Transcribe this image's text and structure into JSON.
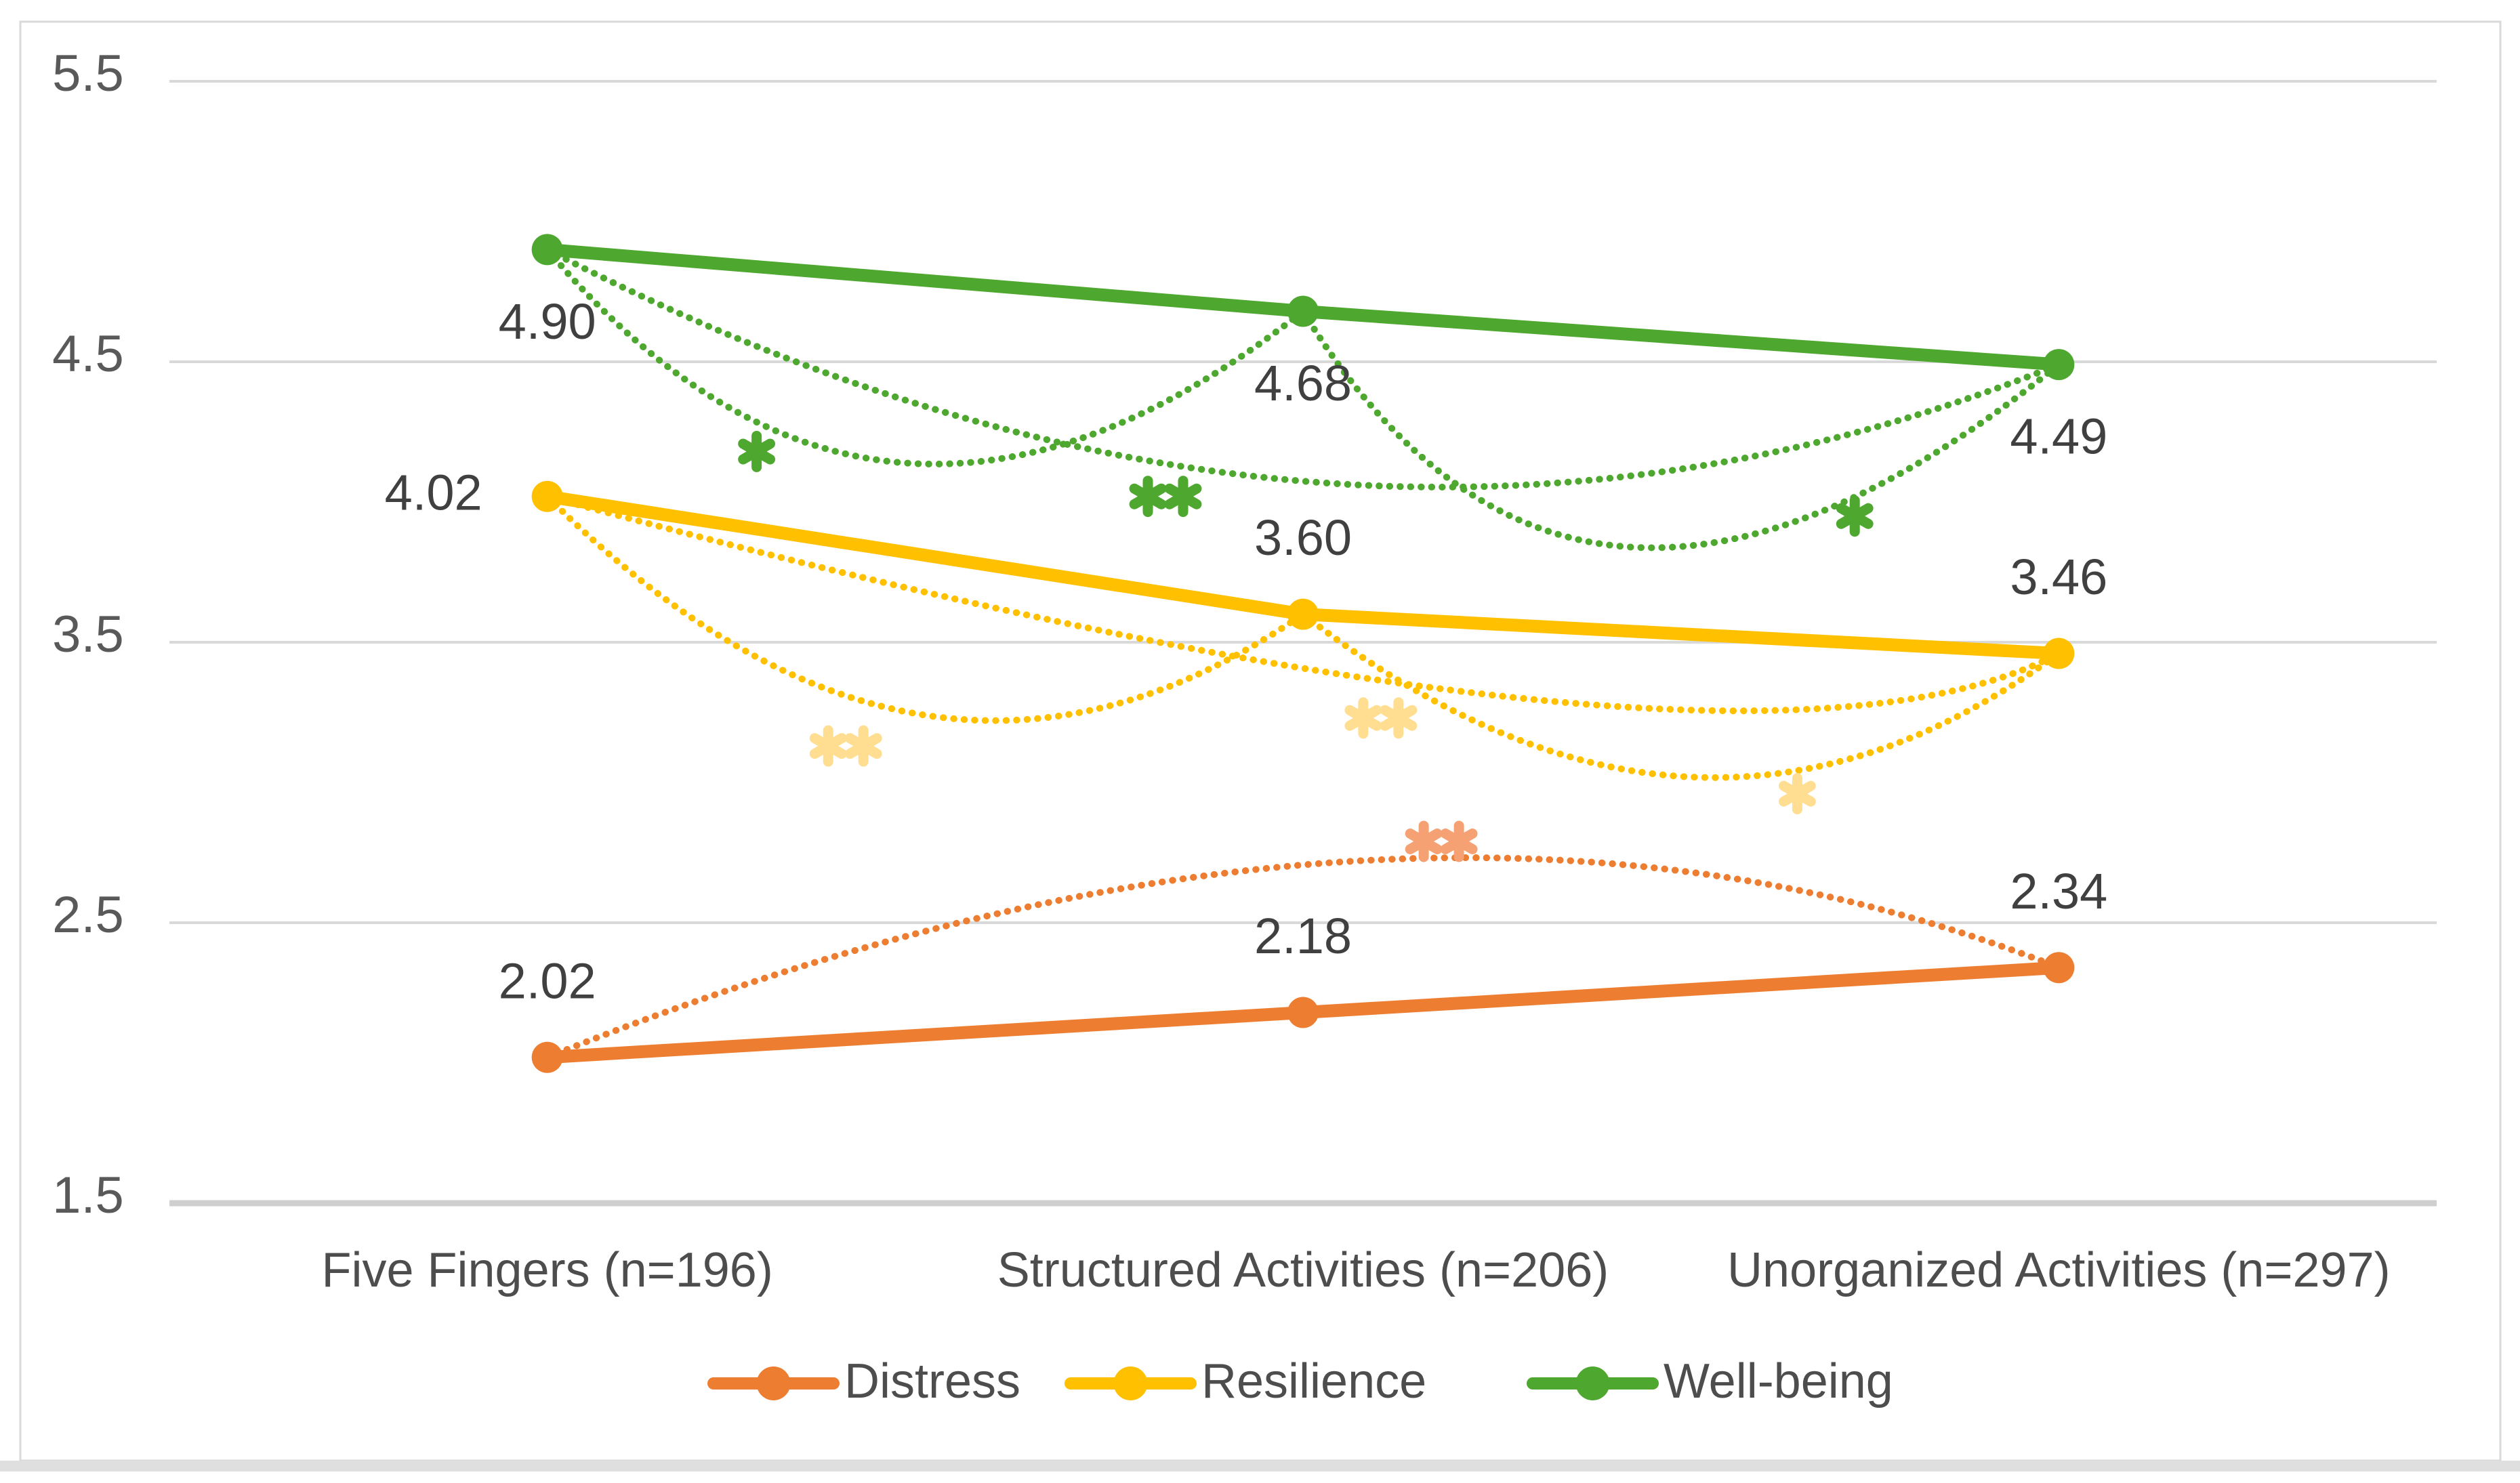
{
  "chart_data": {
    "type": "line",
    "title": "",
    "categories": [
      "Five Fingers (n=196)",
      "Structured Activities (n=206)",
      "Unorganized Activities (n=297)"
    ],
    "series": [
      {
        "name": "Distress",
        "color": "#ED7D31",
        "values": [
          2.02,
          2.18,
          2.34
        ],
        "labels": [
          "2.02",
          "2.18",
          "2.34"
        ],
        "label_placement": [
          "above",
          "above",
          "above"
        ]
      },
      {
        "name": "Resilience",
        "color": "#FFC000",
        "values": [
          4.02,
          3.6,
          3.46
        ],
        "labels": [
          "4.02",
          "3.60",
          "3.46"
        ],
        "label_placement": [
          "left",
          "above",
          "above"
        ]
      },
      {
        "name": "Well-being",
        "color": "#4EA72E",
        "values": [
          4.9,
          4.68,
          4.49
        ],
        "labels": [
          "4.90",
          "4.68",
          "4.49"
        ],
        "label_placement": [
          "below",
          "below",
          "below"
        ]
      }
    ],
    "y_axis": {
      "min": 1.5,
      "max": 5.5,
      "step": 1.0,
      "ticks": [
        "5.5",
        "4.5",
        "3.5",
        "2.5",
        "1.5"
      ],
      "grid": true
    },
    "x_axis": {
      "labels_visible": true
    },
    "legend": {
      "position": "bottom",
      "entries": [
        "Distress",
        "Resilience",
        "Well-being"
      ]
    },
    "comparisons": [
      {
        "series": "Well-being",
        "from": 0,
        "to": 1,
        "sig": "*",
        "arc_color": "#4EA72E",
        "star_color": "#4EA72E",
        "star_x": 0.277,
        "star_v": 4.18,
        "apex_x": 0.47,
        "apex_v": 4.14
      },
      {
        "series": "Well-being",
        "from": 0,
        "to": 2,
        "sig": "**",
        "arc_color": "#4EA72E",
        "star_color": "#4EA72E",
        "star_x": 0.818,
        "star_v": 4.02,
        "apex_x": 1.02,
        "apex_v": 4.07
      },
      {
        "series": "Well-being",
        "from": 1,
        "to": 2,
        "sig": "*",
        "arc_color": "#4EA72E",
        "star_color": "#4EA72E",
        "star_x": 1.73,
        "star_v": 3.95,
        "apex_x": 1.43,
        "apex_v": 3.84
      },
      {
        "series": "Resilience",
        "from": 0,
        "to": 1,
        "sig": "**",
        "arc_color": "#FFC000",
        "star_color": "#FFDE91",
        "star_x": 0.395,
        "star_v": 3.13,
        "apex_x": 0.5,
        "apex_v": 3.24
      },
      {
        "series": "Resilience",
        "from": 0,
        "to": 2,
        "sig": "**",
        "arc_color": "#FFC000",
        "star_color": "#FFDE91",
        "star_x": 1.103,
        "star_v": 3.23,
        "apex_x": 1.29,
        "apex_v": 3.3
      },
      {
        "series": "Resilience",
        "from": 1,
        "to": 2,
        "sig": "*",
        "arc_color": "#FFC000",
        "star_color": "#FFDE91",
        "star_x": 1.654,
        "star_v": 2.96,
        "apex_x": 1.51,
        "apex_v": 3.02
      },
      {
        "series": "Distress",
        "from": 0,
        "to": 2,
        "sig": "**",
        "arc_color": "#ED7D31",
        "star_color": "#F5A173",
        "star_x": 1.183,
        "star_v": 2.79,
        "apex_x": 1.07,
        "apex_v": 2.72
      }
    ],
    "colors": {
      "grid": "#D9D9D9",
      "axis_bottom": "#CFCFCF",
      "frame": "#D9D9D9",
      "bottom_bar": "#DFDFDF",
      "tick_label": "#595959",
      "category_label": "#4D4D4D",
      "data_label": "#404040",
      "legend_label": "#4D4D4D"
    }
  }
}
